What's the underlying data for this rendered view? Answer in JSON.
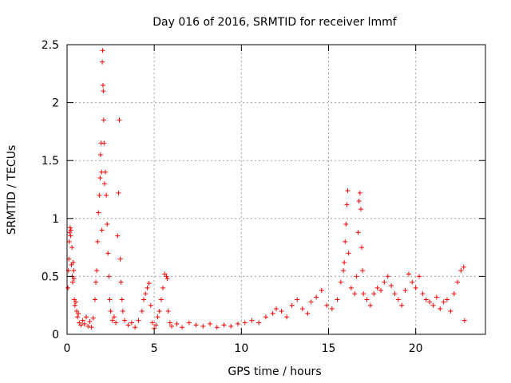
{
  "chart_data": {
    "type": "scatter",
    "title": "Day 016 of 2016, SRMTID for receiver lmmf",
    "xlabel": "GPS time / hours",
    "ylabel": "SRMTID / TECUs",
    "xlim": [
      0,
      24
    ],
    "ylim": [
      0,
      2.5
    ],
    "x_ticks": [
      0,
      5,
      10,
      15,
      20
    ],
    "x_tick_labels": [
      "0",
      "5",
      "10",
      "15",
      "20"
    ],
    "y_ticks": [
      0,
      0.5,
      1,
      1.5,
      2,
      2.5
    ],
    "y_tick_labels": [
      "0",
      "0.5",
      "1",
      "1.5",
      "2",
      "2.5"
    ],
    "grid": true,
    "marker": "+",
    "series": [
      {
        "name": "SRMTID",
        "color": "#ff0000",
        "points": [
          [
            0.05,
            0.4
          ],
          [
            0.08,
            0.55
          ],
          [
            0.1,
            0.65
          ],
          [
            0.12,
            0.8
          ],
          [
            0.15,
            0.88
          ],
          [
            0.18,
            0.92
          ],
          [
            0.2,
            0.85
          ],
          [
            0.22,
            0.9
          ],
          [
            0.25,
            0.6
          ],
          [
            0.28,
            0.75
          ],
          [
            0.3,
            0.5
          ],
          [
            0.32,
            0.45
          ],
          [
            0.35,
            0.62
          ],
          [
            0.38,
            0.55
          ],
          [
            0.4,
            0.48
          ],
          [
            0.42,
            0.3
          ],
          [
            0.45,
            0.25
          ],
          [
            0.5,
            0.28
          ],
          [
            0.55,
            0.2
          ],
          [
            0.6,
            0.15
          ],
          [
            0.65,
            0.18
          ],
          [
            0.7,
            0.1
          ],
          [
            0.8,
            0.08
          ],
          [
            0.9,
            0.12
          ],
          [
            1.0,
            0.09
          ],
          [
            1.1,
            0.15
          ],
          [
            1.2,
            0.07
          ],
          [
            1.3,
            0.11
          ],
          [
            1.4,
            0.06
          ],
          [
            1.5,
            0.14
          ],
          [
            1.6,
            0.3
          ],
          [
            1.65,
            0.45
          ],
          [
            1.7,
            0.55
          ],
          [
            1.75,
            0.8
          ],
          [
            1.8,
            1.05
          ],
          [
            1.85,
            1.2
          ],
          [
            1.9,
            1.35
          ],
          [
            1.92,
            1.55
          ],
          [
            1.95,
            1.65
          ],
          [
            1.98,
            1.4
          ],
          [
            2.0,
            0.9
          ],
          [
            2.02,
            2.35
          ],
          [
            2.04,
            2.45
          ],
          [
            2.06,
            2.15
          ],
          [
            2.08,
            2.1
          ],
          [
            2.1,
            1.85
          ],
          [
            2.12,
            1.65
          ],
          [
            2.15,
            1.3
          ],
          [
            2.2,
            1.4
          ],
          [
            2.25,
            1.2
          ],
          [
            2.3,
            0.95
          ],
          [
            2.35,
            0.7
          ],
          [
            2.4,
            0.5
          ],
          [
            2.45,
            0.3
          ],
          [
            2.5,
            0.2
          ],
          [
            2.6,
            0.12
          ],
          [
            2.7,
            0.15
          ],
          [
            2.8,
            0.1
          ],
          [
            2.9,
            0.85
          ],
          [
            2.95,
            1.22
          ],
          [
            3.0,
            1.85
          ],
          [
            3.05,
            0.65
          ],
          [
            3.1,
            0.45
          ],
          [
            3.15,
            0.3
          ],
          [
            3.2,
            0.2
          ],
          [
            3.3,
            0.12
          ],
          [
            3.5,
            0.08
          ],
          [
            3.7,
            0.1
          ],
          [
            3.9,
            0.06
          ],
          [
            4.1,
            0.12
          ],
          [
            4.3,
            0.2
          ],
          [
            4.4,
            0.3
          ],
          [
            4.5,
            0.35
          ],
          [
            4.6,
            0.4
          ],
          [
            4.7,
            0.44
          ],
          [
            4.8,
            0.25
          ],
          [
            4.9,
            0.1
          ],
          [
            5.0,
            0.05
          ],
          [
            5.1,
            0.08
          ],
          [
            5.2,
            0.15
          ],
          [
            5.3,
            0.2
          ],
          [
            5.4,
            0.3
          ],
          [
            5.5,
            0.4
          ],
          [
            5.6,
            0.52
          ],
          [
            5.7,
            0.5
          ],
          [
            5.75,
            0.48
          ],
          [
            5.8,
            0.2
          ],
          [
            5.9,
            0.1
          ],
          [
            6.0,
            0.07
          ],
          [
            6.3,
            0.09
          ],
          [
            6.6,
            0.06
          ],
          [
            7.0,
            0.1
          ],
          [
            7.4,
            0.08
          ],
          [
            7.8,
            0.07
          ],
          [
            8.2,
            0.09
          ],
          [
            8.6,
            0.06
          ],
          [
            9.0,
            0.08
          ],
          [
            9.4,
            0.07
          ],
          [
            9.8,
            0.09
          ],
          [
            10.2,
            0.1
          ],
          [
            10.6,
            0.12
          ],
          [
            11.0,
            0.1
          ],
          [
            11.4,
            0.15
          ],
          [
            11.8,
            0.18
          ],
          [
            12.0,
            0.22
          ],
          [
            12.3,
            0.2
          ],
          [
            12.6,
            0.15
          ],
          [
            12.9,
            0.25
          ],
          [
            13.2,
            0.3
          ],
          [
            13.5,
            0.22
          ],
          [
            13.8,
            0.18
          ],
          [
            14.0,
            0.28
          ],
          [
            14.3,
            0.32
          ],
          [
            14.6,
            0.38
          ],
          [
            14.9,
            0.25
          ],
          [
            15.2,
            0.22
          ],
          [
            15.5,
            0.3
          ],
          [
            15.7,
            0.45
          ],
          [
            15.85,
            0.55
          ],
          [
            15.9,
            0.62
          ],
          [
            15.95,
            0.8
          ],
          [
            16.0,
            0.95
          ],
          [
            16.05,
            1.12
          ],
          [
            16.1,
            1.24
          ],
          [
            16.15,
            0.7
          ],
          [
            16.3,
            0.4
          ],
          [
            16.5,
            0.35
          ],
          [
            16.6,
            0.5
          ],
          [
            16.7,
            0.88
          ],
          [
            16.75,
            1.15
          ],
          [
            16.8,
            1.22
          ],
          [
            16.85,
            1.08
          ],
          [
            16.9,
            0.75
          ],
          [
            16.95,
            0.55
          ],
          [
            17.0,
            0.35
          ],
          [
            17.2,
            0.3
          ],
          [
            17.4,
            0.25
          ],
          [
            17.6,
            0.35
          ],
          [
            17.8,
            0.4
          ],
          [
            18.0,
            0.38
          ],
          [
            18.2,
            0.45
          ],
          [
            18.4,
            0.5
          ],
          [
            18.6,
            0.42
          ],
          [
            18.8,
            0.35
          ],
          [
            19.0,
            0.3
          ],
          [
            19.2,
            0.25
          ],
          [
            19.4,
            0.38
          ],
          [
            19.6,
            0.52
          ],
          [
            19.8,
            0.45
          ],
          [
            20.0,
            0.4
          ],
          [
            20.2,
            0.5
          ],
          [
            20.4,
            0.35
          ],
          [
            20.6,
            0.3
          ],
          [
            20.8,
            0.28
          ],
          [
            21.0,
            0.25
          ],
          [
            21.2,
            0.32
          ],
          [
            21.4,
            0.22
          ],
          [
            21.6,
            0.28
          ],
          [
            21.8,
            0.3
          ],
          [
            22.0,
            0.2
          ],
          [
            22.2,
            0.35
          ],
          [
            22.4,
            0.45
          ],
          [
            22.6,
            0.55
          ],
          [
            22.75,
            0.58
          ],
          [
            22.8,
            0.12
          ]
        ]
      }
    ]
  }
}
